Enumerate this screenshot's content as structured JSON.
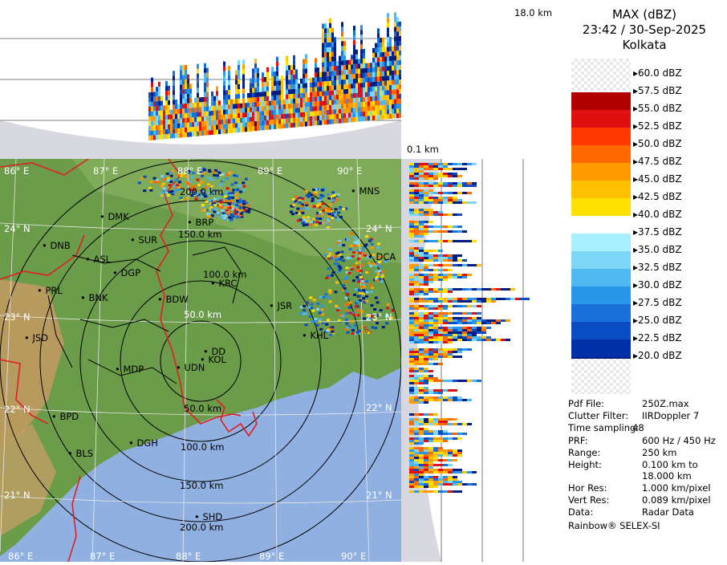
{
  "header": {
    "product": "MAX (dBZ)",
    "datetime": "23:42 / 30-Sep-2025",
    "station": "Kolkata",
    "top_height_label": "18.0 km",
    "bottom_height_label": "0.1 km"
  },
  "legend": {
    "labels": [
      "60.0 dBZ",
      "57.5 dBZ",
      "55.0 dBZ",
      "52.5 dBZ",
      "50.0 dBZ",
      "47.5 dBZ",
      "45.0 dBZ",
      "42.5 dBZ",
      "40.0 dBZ",
      "37.5 dBZ",
      "35.0 dBZ",
      "32.5 dBZ",
      "30.0 dBZ",
      "27.5 dBZ",
      "25.0 dBZ",
      "22.5 dBZ",
      "20.0 dBZ"
    ],
    "colors": [
      "#8b0000",
      "#b00000",
      "#e01010",
      "#ff3a00",
      "#ff6a00",
      "#ff9a00",
      "#ffc000",
      "#ffe000",
      "#ffffff",
      "#a8f0ff",
      "#7fd7f7",
      "#4fb8f0",
      "#2a96ea",
      "#1870d8",
      "#0a4cc4",
      "#0030a8",
      "#001e84"
    ]
  },
  "info": [
    {
      "key": "Pdf File:",
      "value": "250Z.max"
    },
    {
      "key": "Clutter Filter:",
      "value": "IIRDoppler 7"
    },
    {
      "key": "Time sampling:",
      "value": "48"
    },
    {
      "key": "PRF:",
      "value": "600 Hz / 450 Hz"
    },
    {
      "key": "Range:",
      "value": "250 km"
    },
    {
      "key": "Height:",
      "value": "0.100 km to"
    },
    {
      "key": "",
      "value": "18.000 km"
    },
    {
      "key": "Hor Res:",
      "value": "1.000 km/pixel"
    },
    {
      "key": "Vert Res:",
      "value": "0.089 km/pixel"
    },
    {
      "key": "Data:",
      "value": "Radar Data"
    }
  ],
  "footer": "Rainbow® SELEX-SI",
  "map": {
    "lon_labels": [
      "86° E",
      "87° E",
      "88° E",
      "89° E",
      "90° E"
    ],
    "lat_labels": [
      "24° N",
      "23° N",
      "22° N",
      "21° N"
    ],
    "range_labels": [
      "50.0 km",
      "100.0 km",
      "150.0 km",
      "200.0 km"
    ],
    "cities": [
      "MNS",
      "DMK",
      "BRP",
      "SUR",
      "DNB",
      "ASL",
      "DGP",
      "KRC",
      "PRL",
      "BNK",
      "BDW",
      "DCA",
      "JSR",
      "KHL",
      "JSD",
      "DD",
      "KOL",
      "MDP",
      "UDN",
      "BPD",
      "DGH",
      "BLS",
      "SHD"
    ],
    "colors": {
      "land": "#6a9c4a",
      "sea": "#8fb0e0",
      "border": "#e02020"
    }
  }
}
